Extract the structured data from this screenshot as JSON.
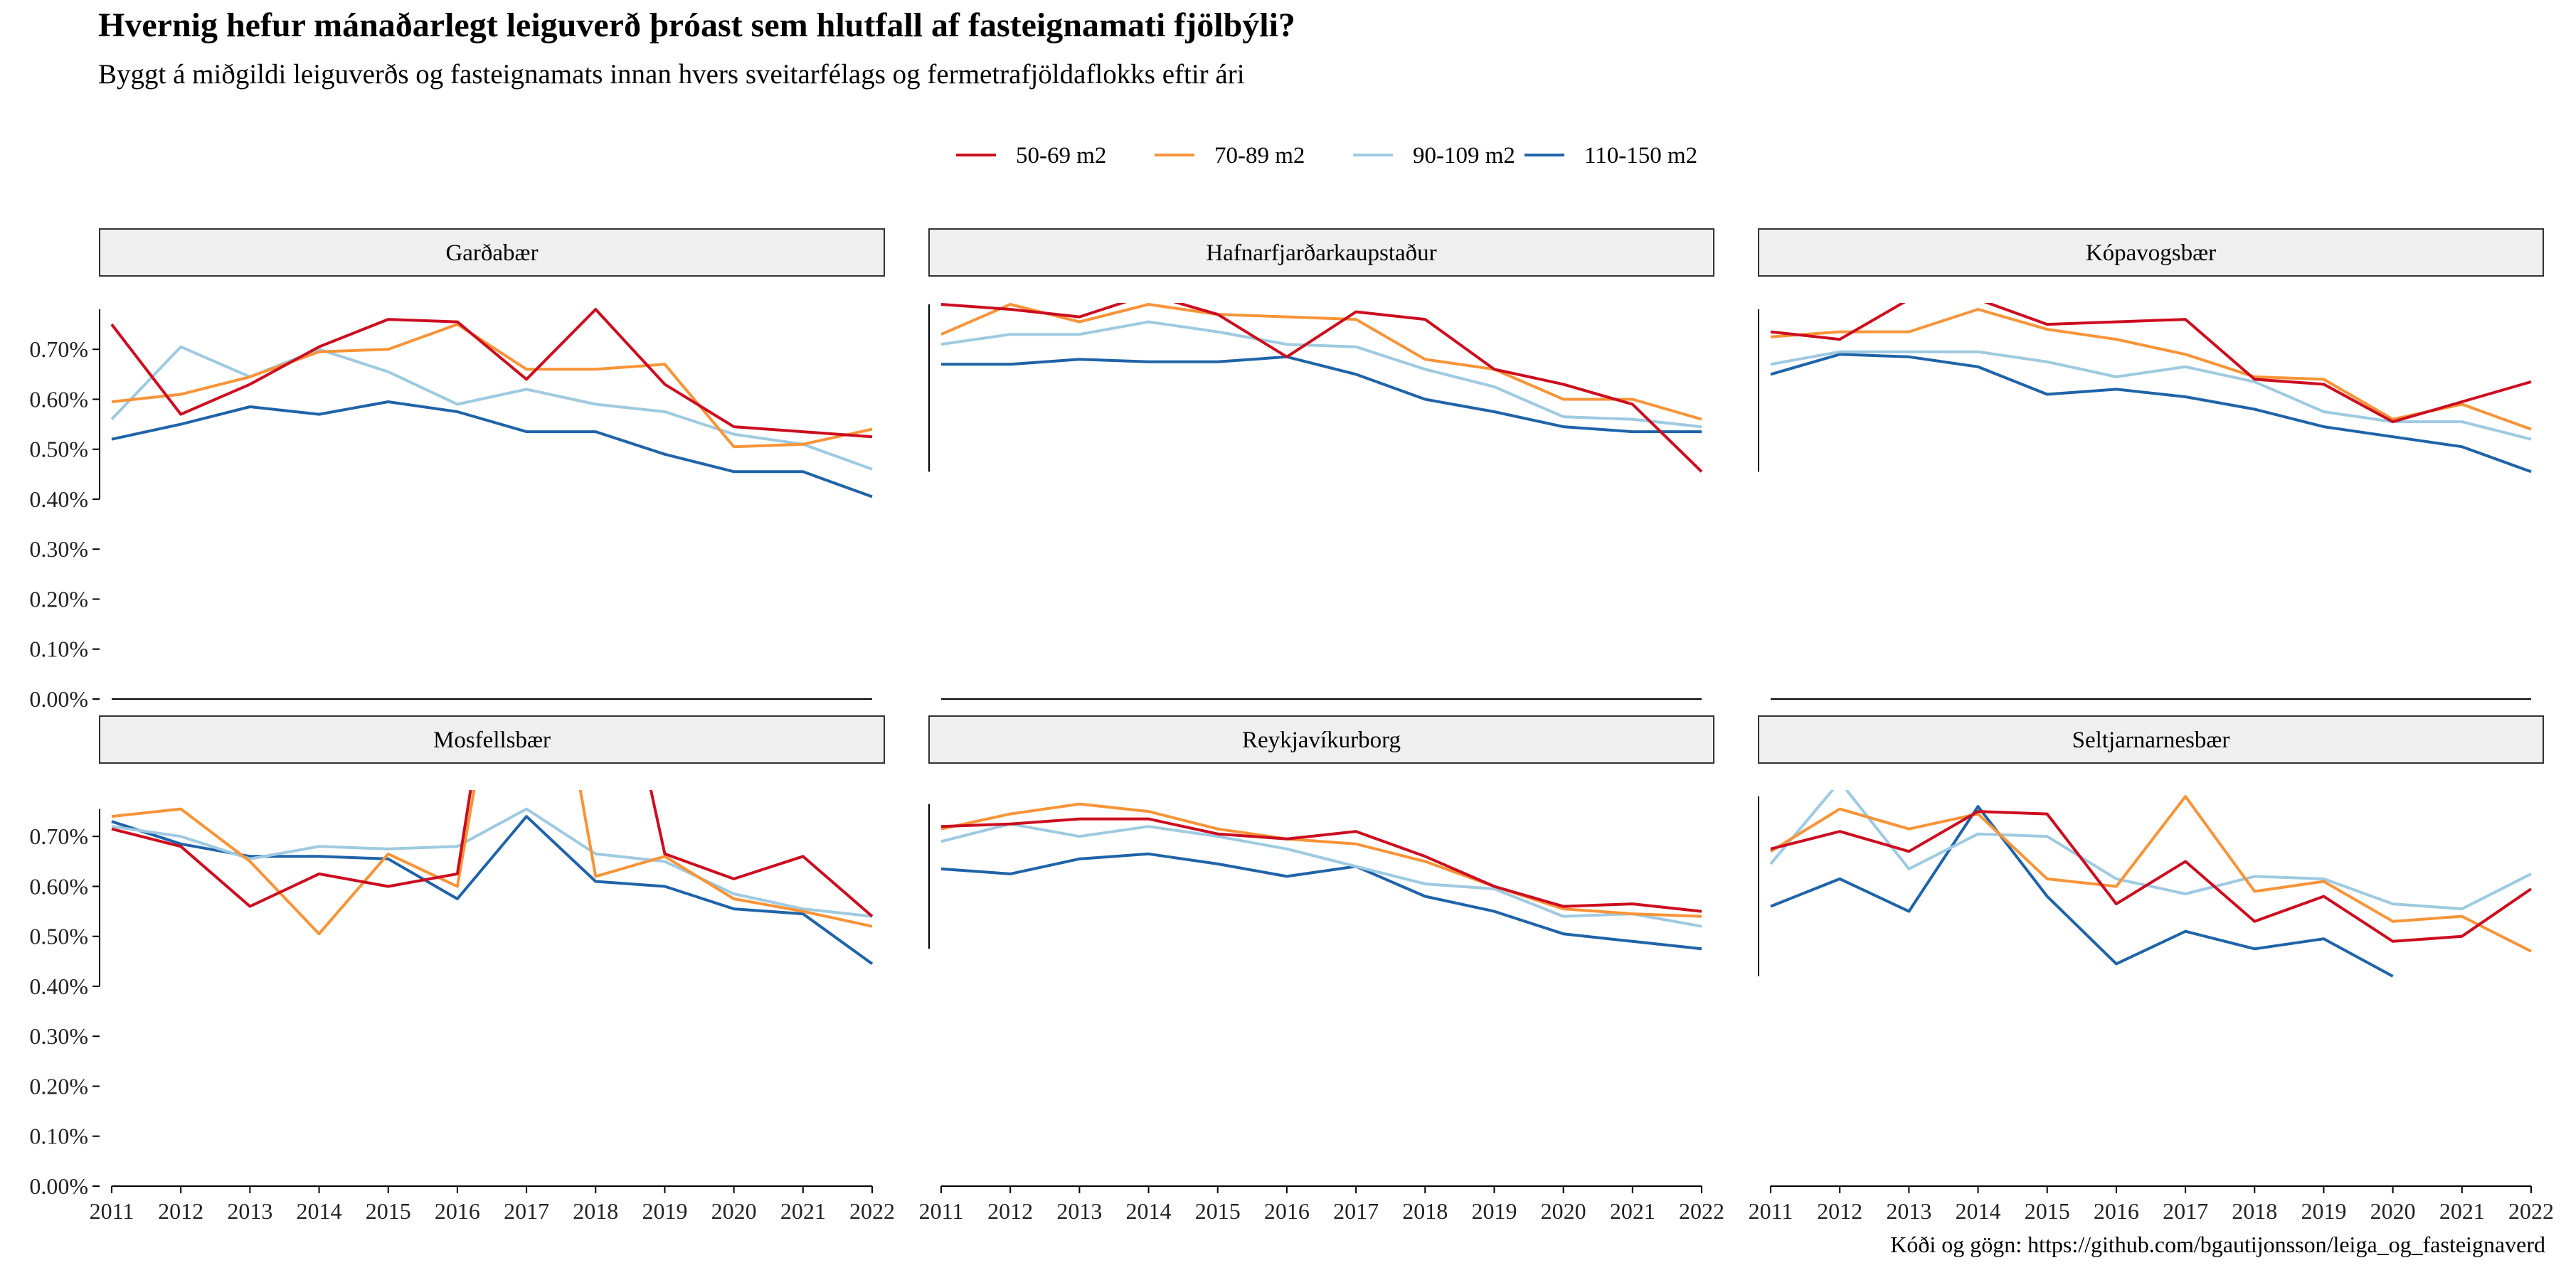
{
  "title": "Hvernig hefur mánaðarlegt leiguverð þróast sem hlutfall af fasteignamati fjölbýli?",
  "subtitle": "Byggt á miðgildi leiguverðs og fasteignamats innan hvers sveitarfélags og fermetrafjöldaflokks eftir ári",
  "caption": "Kóði og gögn: https://github.com/bgautijonsson/leiga_og_fasteignaverd",
  "colors": {
    "50-69 m2": "#cc0d1f",
    "70-89 m2": "#f79438",
    "90-109 m2": "#9ecae1",
    "110-150 m2": "#1f63a8",
    "strip_fill": "#efefef"
  },
  "chart_data": {
    "type": "line",
    "x": [
      2011,
      2012,
      2013,
      2014,
      2015,
      2016,
      2017,
      2018,
      2019,
      2020,
      2021,
      2022
    ],
    "y_ticks": [
      "0.00%",
      "0.10%",
      "0.20%",
      "0.30%",
      "0.40%",
      "0.50%",
      "0.60%",
      "0.70%"
    ],
    "y_tick_values": [
      0,
      0.1,
      0.2,
      0.3,
      0.4,
      0.5,
      0.6,
      0.7
    ],
    "ylim": [
      0,
      0.79
    ],
    "grid": false,
    "legend_position": "top",
    "legend": [
      "50-69 m2",
      "70-89 m2",
      "90-109 m2",
      "110-150 m2"
    ],
    "facets": [
      {
        "name": "Garðabær",
        "series": [
          {
            "name": "50-69 m2",
            "values": [
              0.75,
              0.57,
              0.63,
              0.705,
              0.76,
              0.755,
              0.64,
              0.78,
              0.63,
              0.545,
              0.535,
              0.525
            ]
          },
          {
            "name": "70-89 m2",
            "values": [
              0.595,
              0.61,
              0.645,
              0.695,
              0.7,
              0.75,
              0.66,
              0.66,
              0.67,
              0.505,
              0.51,
              0.54
            ]
          },
          {
            "name": "90-109 m2",
            "values": [
              0.56,
              0.705,
              0.645,
              0.7,
              0.655,
              0.59,
              0.62,
              0.59,
              0.575,
              0.53,
              0.51,
              0.46
            ]
          },
          {
            "name": "110-150 m2",
            "values": [
              0.52,
              0.55,
              0.585,
              0.57,
              0.595,
              0.575,
              0.535,
              0.535,
              0.49,
              0.455,
              0.455,
              0.405
            ]
          }
        ]
      },
      {
        "name": "Hafnarfjarðarkaupstaður",
        "series": [
          {
            "name": "50-69 m2",
            "values": [
              0.79,
              0.78,
              0.765,
              0.81,
              0.77,
              0.685,
              0.775,
              0.76,
              0.66,
              0.63,
              0.59,
              0.455
            ]
          },
          {
            "name": "70-89 m2",
            "values": [
              0.73,
              0.79,
              0.755,
              0.79,
              0.77,
              0.765,
              0.76,
              0.68,
              0.66,
              0.6,
              0.6,
              0.56
            ]
          },
          {
            "name": "90-109 m2",
            "values": [
              0.71,
              0.73,
              0.73,
              0.755,
              0.735,
              0.71,
              0.705,
              0.66,
              0.625,
              0.565,
              0.56,
              0.545
            ]
          },
          {
            "name": "110-150 m2",
            "values": [
              0.67,
              0.67,
              0.68,
              0.675,
              0.675,
              0.685,
              0.65,
              0.6,
              0.575,
              0.545,
              0.535,
              0.535
            ]
          }
        ]
      },
      {
        "name": "Kópavogsbær",
        "series": [
          {
            "name": "50-69 m2",
            "values": [
              0.735,
              0.72,
              0.8,
              0.8,
              0.75,
              0.755,
              0.76,
              0.64,
              0.63,
              0.555,
              0.595,
              0.635
            ]
          },
          {
            "name": "70-89 m2",
            "values": [
              0.725,
              0.735,
              0.735,
              0.78,
              0.74,
              0.72,
              0.69,
              0.645,
              0.64,
              0.56,
              0.59,
              0.54
            ]
          },
          {
            "name": "90-109 m2",
            "values": [
              0.67,
              0.695,
              0.695,
              0.695,
              0.675,
              0.645,
              0.665,
              0.635,
              0.575,
              0.555,
              0.555,
              0.52
            ]
          },
          {
            "name": "110-150 m2",
            "values": [
              0.65,
              0.69,
              0.685,
              0.665,
              0.61,
              0.62,
              0.605,
              0.58,
              0.545,
              0.525,
              0.505,
              0.455
            ]
          }
        ]
      },
      {
        "name": "Mosfellsbær",
        "series": [
          {
            "name": "50-69 m2",
            "values": [
              0.715,
              0.68,
              0.56,
              0.625,
              0.6,
              0.625,
              1.5,
              1.3,
              0.665,
              0.615,
              0.66,
              0.54
            ]
          },
          {
            "name": "70-89 m2",
            "values": [
              0.74,
              0.755,
              0.65,
              0.505,
              0.665,
              0.6,
              1.4,
              0.62,
              0.66,
              0.575,
              0.55,
              0.52
            ]
          },
          {
            "name": "90-109 m2",
            "values": [
              0.72,
              0.7,
              0.655,
              0.68,
              0.675,
              0.68,
              0.755,
              0.665,
              0.65,
              0.585,
              0.555,
              0.54
            ]
          },
          {
            "name": "110-150 m2",
            "values": [
              0.73,
              0.685,
              0.66,
              0.66,
              0.655,
              0.575,
              0.74,
              0.61,
              0.6,
              0.555,
              0.545,
              0.445
            ]
          }
        ]
      },
      {
        "name": "Reykjavíkurborg",
        "series": [
          {
            "name": "50-69 m2",
            "values": [
              0.72,
              0.725,
              0.735,
              0.735,
              0.705,
              0.695,
              0.71,
              0.66,
              0.6,
              0.56,
              0.565,
              0.55
            ]
          },
          {
            "name": "70-89 m2",
            "values": [
              0.715,
              0.745,
              0.765,
              0.75,
              0.715,
              0.695,
              0.685,
              0.65,
              0.6,
              0.555,
              0.545,
              0.54
            ]
          },
          {
            "name": "90-109 m2",
            "values": [
              0.69,
              0.725,
              0.7,
              0.72,
              0.7,
              0.675,
              0.64,
              0.605,
              0.595,
              0.54,
              0.545,
              0.52
            ]
          },
          {
            "name": "110-150 m2",
            "values": [
              0.635,
              0.625,
              0.655,
              0.665,
              0.645,
              0.62,
              0.64,
              0.58,
              0.55,
              0.505,
              0.49,
              0.475
            ]
          }
        ]
      },
      {
        "name": "Seltjarnarnesbær",
        "series": [
          {
            "name": "50-69 m2",
            "values": [
              0.675,
              0.71,
              0.67,
              0.75,
              0.745,
              0.565,
              0.65,
              0.53,
              0.58,
              0.49,
              0.5,
              0.595
            ]
          },
          {
            "name": "70-89 m2",
            "values": [
              0.67,
              0.755,
              0.715,
              0.745,
              0.615,
              0.6,
              0.78,
              0.59,
              0.61,
              0.53,
              0.54,
              0.47
            ]
          },
          {
            "name": "90-109 m2",
            "values": [
              0.645,
              0.81,
              0.635,
              0.705,
              0.7,
              0.615,
              0.585,
              0.62,
              0.615,
              0.565,
              0.555,
              0.625
            ]
          },
          {
            "name": "110-150 m2",
            "values": [
              0.56,
              0.615,
              0.55,
              0.76,
              0.58,
              0.445,
              0.51,
              0.475,
              0.495,
              0.42,
              null,
              null
            ]
          }
        ]
      }
    ]
  }
}
